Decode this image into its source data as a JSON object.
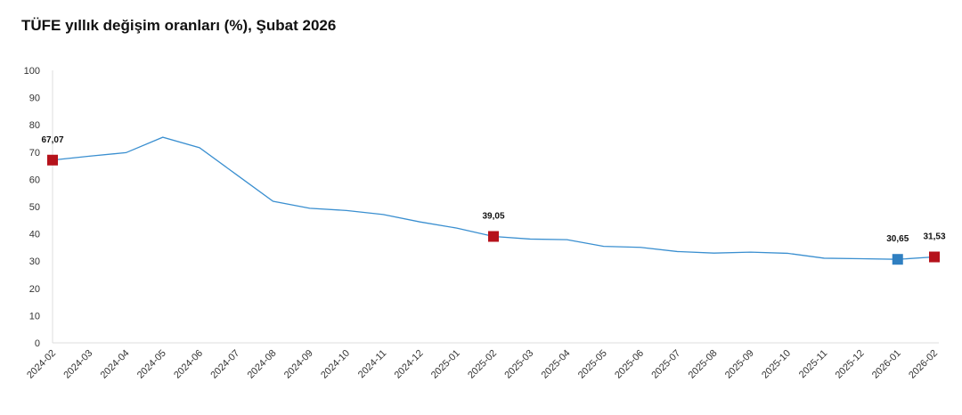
{
  "chart_data": {
    "type": "line",
    "title": "TÜFE yıllık değişim oranları (%), Şubat 2026",
    "xlabel": "",
    "ylabel": "",
    "ylim": [
      0,
      100
    ],
    "yticks": [
      0,
      10,
      20,
      30,
      40,
      50,
      60,
      70,
      80,
      90,
      100
    ],
    "grid": false,
    "categories": [
      "2024-02",
      "2024-03",
      "2024-04",
      "2024-05",
      "2024-06",
      "2024-07",
      "2024-08",
      "2024-09",
      "2024-10",
      "2024-11",
      "2024-12",
      "2025-01",
      "2025-02",
      "2025-03",
      "2025-04",
      "2025-05",
      "2025-06",
      "2025-07",
      "2025-08",
      "2025-09",
      "2025-10",
      "2025-11",
      "2025-12",
      "2026-01",
      "2026-02"
    ],
    "values": [
      67.07,
      68.5,
      69.8,
      75.45,
      71.6,
      61.78,
      51.97,
      49.38,
      48.58,
      47.09,
      44.38,
      42.12,
      39.05,
      38.1,
      37.86,
      35.41,
      35.05,
      33.52,
      32.95,
      33.29,
      32.87,
      31.07,
      30.89,
      30.65,
      31.53
    ],
    "line_color": "#3a8fd0",
    "highlights": [
      {
        "index": 0,
        "label": "67,07",
        "color": "#b5121b"
      },
      {
        "index": 12,
        "label": "39,05",
        "color": "#b5121b"
      },
      {
        "index": 23,
        "label": "30,65",
        "color": "#2f7fc1"
      },
      {
        "index": 24,
        "label": "31,53",
        "color": "#b5121b"
      }
    ]
  }
}
